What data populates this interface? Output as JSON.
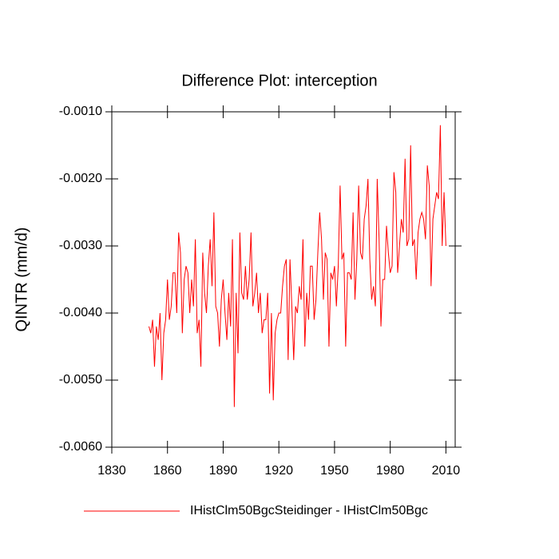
{
  "chart_data": {
    "type": "line",
    "title": "Difference Plot: interception",
    "y_label": "QINTR  (mm/d)",
    "x": [
      1850,
      1851,
      1852,
      1853,
      1854,
      1855,
      1856,
      1857,
      1858,
      1859,
      1860,
      1861,
      1862,
      1863,
      1864,
      1865,
      1866,
      1867,
      1868,
      1869,
      1870,
      1871,
      1872,
      1873,
      1874,
      1875,
      1876,
      1877,
      1878,
      1879,
      1880,
      1881,
      1882,
      1883,
      1884,
      1885,
      1886,
      1887,
      1888,
      1889,
      1890,
      1891,
      1892,
      1893,
      1894,
      1895,
      1896,
      1897,
      1898,
      1899,
      1900,
      1901,
      1902,
      1903,
      1904,
      1905,
      1906,
      1907,
      1908,
      1909,
      1910,
      1911,
      1912,
      1913,
      1914,
      1915,
      1916,
      1917,
      1918,
      1919,
      1920,
      1921,
      1922,
      1923,
      1924,
      1925,
      1926,
      1927,
      1928,
      1929,
      1930,
      1931,
      1932,
      1933,
      1934,
      1935,
      1936,
      1937,
      1938,
      1939,
      1940,
      1941,
      1942,
      1943,
      1944,
      1945,
      1946,
      1947,
      1948,
      1949,
      1950,
      1951,
      1952,
      1953,
      1954,
      1955,
      1956,
      1957,
      1958,
      1959,
      1960,
      1961,
      1962,
      1963,
      1964,
      1965,
      1966,
      1967,
      1968,
      1969,
      1970,
      1971,
      1972,
      1973,
      1974,
      1975,
      1976,
      1977,
      1978,
      1979,
      1980,
      1981,
      1982,
      1983,
      1984,
      1985,
      1986,
      1987,
      1988,
      1989,
      1990,
      1991,
      1992,
      1993,
      1994,
      1995,
      1996,
      1997,
      1998,
      1999,
      2000,
      2001,
      2002,
      2003,
      2004,
      2005,
      2006,
      2007,
      2008,
      2009,
      2010
    ],
    "series": [
      {
        "name": "IHistClm50BgcSteidinger - IHistClm50Bgc",
        "color": "#ff0000",
        "values": [
          -0.0042,
          -0.0043,
          -0.0041,
          -0.0048,
          -0.0042,
          -0.0044,
          -0.004,
          -0.005,
          -0.0043,
          -0.0041,
          -0.0035,
          -0.0041,
          -0.0039,
          -0.0034,
          -0.0034,
          -0.004,
          -0.0028,
          -0.0031,
          -0.0043,
          -0.0035,
          -0.0033,
          -0.0034,
          -0.004,
          -0.0035,
          -0.0039,
          -0.0029,
          -0.0043,
          -0.0041,
          -0.0048,
          -0.0031,
          -0.0037,
          -0.004,
          -0.0033,
          -0.0029,
          -0.0036,
          -0.0025,
          -0.0039,
          -0.004,
          -0.0045,
          -0.0038,
          -0.0035,
          -0.004,
          -0.0044,
          -0.0037,
          -0.0042,
          -0.0029,
          -0.0054,
          -0.0037,
          -0.0046,
          -0.0028,
          -0.0037,
          -0.0038,
          -0.0033,
          -0.0038,
          -0.0035,
          -0.0028,
          -0.0039,
          -0.0037,
          -0.0034,
          -0.004,
          -0.0037,
          -0.0043,
          -0.0041,
          -0.0041,
          -0.0037,
          -0.0052,
          -0.004,
          -0.0053,
          -0.0043,
          -0.0041,
          -0.004,
          -0.004,
          -0.0036,
          -0.0033,
          -0.0032,
          -0.0047,
          -0.0032,
          -0.0039,
          -0.0047,
          -0.0039,
          -0.004,
          -0.0036,
          -0.0038,
          -0.0029,
          -0.0045,
          -0.0037,
          -0.0041,
          -0.0033,
          -0.0033,
          -0.0041,
          -0.0038,
          -0.0031,
          -0.0025,
          -0.0029,
          -0.0038,
          -0.0031,
          -0.0032,
          -0.0045,
          -0.0034,
          -0.0035,
          -0.0033,
          -0.0039,
          -0.0033,
          -0.0021,
          -0.0032,
          -0.0031,
          -0.0045,
          -0.0034,
          -0.0034,
          -0.0035,
          -0.0025,
          -0.0038,
          -0.0032,
          -0.0021,
          -0.0031,
          -0.0032,
          -0.0026,
          -0.0024,
          -0.002,
          -0.0032,
          -0.0038,
          -0.0036,
          -0.0039,
          -0.002,
          -0.0029,
          -0.0042,
          -0.0035,
          -0.0035,
          -0.0027,
          -0.0031,
          -0.0034,
          -0.0033,
          -0.0019,
          -0.0022,
          -0.0034,
          -0.003,
          -0.0026,
          -0.0028,
          -0.0017,
          -0.003,
          -0.0029,
          -0.0015,
          -0.003,
          -0.0029,
          -0.0035,
          -0.0028,
          -0.0026,
          -0.0025,
          -0.0026,
          -0.0029,
          -0.0018,
          -0.0021,
          -0.0036,
          -0.0026,
          -0.0024,
          -0.0022,
          -0.0023,
          -0.0012,
          -0.003,
          -0.0022,
          -0.003
        ]
      }
    ],
    "xlim": [
      1830,
      2015
    ],
    "xticks": [
      1830,
      1860,
      1890,
      1920,
      1950,
      1980,
      2010
    ],
    "ylim": [
      -0.006,
      -0.001
    ],
    "yticks": [
      {
        "value": -0.006,
        "label": "-0.0060"
      },
      {
        "value": -0.005,
        "label": "-0.0050"
      },
      {
        "value": -0.004,
        "label": "-0.0040"
      },
      {
        "value": -0.003,
        "label": "-0.0030"
      },
      {
        "value": -0.002,
        "label": "-0.0020"
      },
      {
        "value": -0.001,
        "label": "-0.0010"
      }
    ]
  }
}
